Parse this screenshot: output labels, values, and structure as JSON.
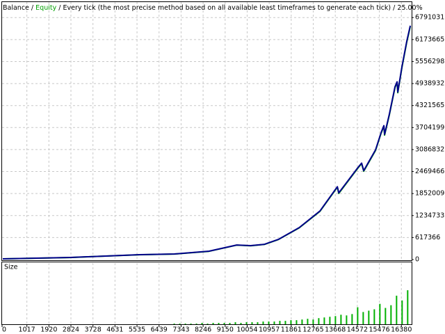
{
  "chart_data": [
    {
      "type": "line",
      "separator": "/",
      "model": "Every tick (the most precise method based on all available least timeframes to generate each tick)",
      "quality": "25.00%",
      "xlim": [
        0,
        16800
      ],
      "ylim": [
        0,
        7225000
      ],
      "yticks": [
        0,
        617366,
        1234733,
        1852009,
        2469466,
        3086832,
        3704199,
        4321565,
        4938932,
        5556298,
        6173665,
        6791031
      ],
      "grid": true,
      "series": [
        {
          "name": "Equity",
          "color": "#00a000",
          "x": [
            28,
            2790,
            5638,
            7062,
            8485,
            9624,
            10194,
            10763,
            11333,
            12187,
            13041,
            13753,
            13810,
            14607,
            14750,
            14835,
            15319,
            15547,
            15661,
            15690,
            15890,
            16118,
            16203,
            16232,
            16403,
            16602,
            16745
          ],
          "values": [
            20000,
            57000,
            134000,
            154000,
            231000,
            404000,
            386000,
            424000,
            560000,
            889000,
            1354000,
            2030000,
            1855000,
            2575000,
            2690000,
            2478000,
            3060000,
            3545000,
            3740000,
            3490000,
            4070000,
            4830000,
            4965000,
            4680000,
            5390000,
            6110000,
            6540000
          ]
        },
        {
          "name": "Balance",
          "color": "#00008b",
          "x": [
            28,
            2790,
            5638,
            7062,
            8485,
            9624,
            10194,
            10763,
            11333,
            12187,
            13041,
            13753,
            13810,
            14607,
            14750,
            14835,
            15319,
            15547,
            15661,
            15690,
            15890,
            16118,
            16203,
            16232,
            16403,
            16602,
            16745
          ],
          "values": [
            20000,
            58000,
            136000,
            156000,
            234000,
            409000,
            390000,
            428000,
            565000,
            896000,
            1363000,
            2045000,
            1870000,
            2590000,
            2707000,
            2493000,
            3077000,
            3564000,
            3758000,
            3510000,
            4090000,
            4850000,
            4990000,
            4700000,
            5414000,
            6135000,
            6563000
          ]
        }
      ]
    },
    {
      "type": "bar",
      "title": "Size",
      "color": "#00b000",
      "xlim": [
        0,
        16800
      ],
      "ylim": [
        0,
        90
      ],
      "xticks": [
        0,
        1017,
        1920,
        2824,
        3728,
        4631,
        5535,
        6439,
        7343,
        8246,
        9150,
        10054,
        10957,
        11861,
        12765,
        13668,
        14572,
        15476,
        16380
      ],
      "x": [
        7062,
        7290,
        7518,
        7746,
        7974,
        8202,
        8430,
        8658,
        8886,
        9114,
        9342,
        9570,
        9798,
        10026,
        10254,
        10482,
        10710,
        10938,
        11166,
        11394,
        11622,
        11850,
        12078,
        12306,
        12534,
        12762,
        12990,
        13218,
        13446,
        13674,
        13902,
        14130,
        14358,
        14586,
        14814,
        15042,
        15270,
        15498,
        15726,
        15954,
        16182,
        16410,
        16638
      ],
      "values": [
        1,
        1,
        1,
        1,
        1,
        2,
        1,
        2,
        2,
        2,
        2,
        3,
        2,
        3,
        3,
        3,
        4,
        4,
        4,
        5,
        5,
        6,
        6,
        7,
        8,
        7,
        9,
        10,
        11,
        12,
        14,
        13,
        15,
        25,
        18,
        20,
        22,
        30,
        24,
        28,
        42,
        35,
        50
      ]
    }
  ]
}
